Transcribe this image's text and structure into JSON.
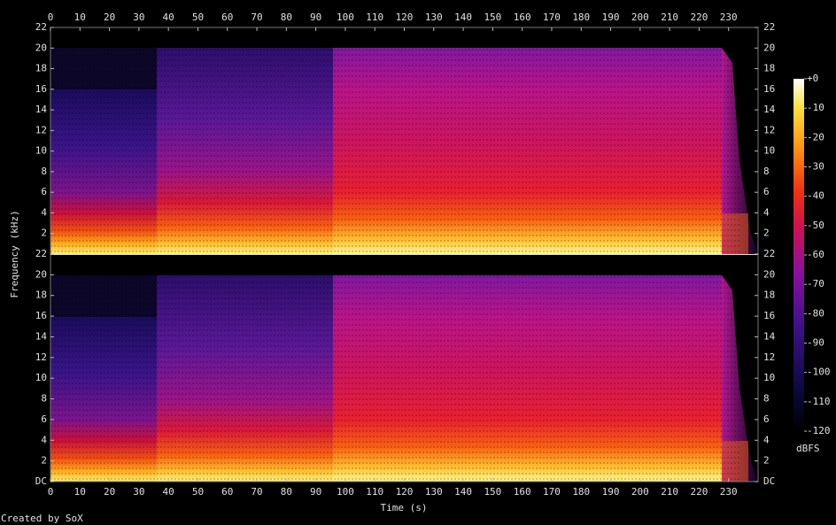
{
  "chart_data": {
    "type": "spectrogram",
    "xlabel": "Time (s)",
    "ylabel": "Frequency (kHz)",
    "xlim": [
      0,
      240
    ],
    "xticks": [
      0,
      10,
      20,
      30,
      40,
      50,
      60,
      70,
      80,
      90,
      100,
      110,
      120,
      130,
      140,
      150,
      160,
      170,
      180,
      190,
      200,
      210,
      220,
      230
    ],
    "panels": [
      {
        "ylim": [
          0,
          22
        ],
        "yticks": [
          2,
          4,
          6,
          8,
          10,
          12,
          14,
          16,
          18,
          20,
          22
        ]
      },
      {
        "ylim": [
          0,
          22
        ],
        "yticks": [
          {
            "value": 0,
            "label": "DC"
          },
          2,
          4,
          6,
          8,
          10,
          12,
          14,
          16,
          18,
          20,
          22
        ]
      }
    ],
    "colorbar": {
      "label": "dBFS",
      "lim": [
        -120,
        0
      ],
      "ticks": [
        {
          "value": 0,
          "label": "+0"
        },
        -10,
        -20,
        -30,
        -40,
        -50,
        -60,
        -70,
        -80,
        -90,
        -100,
        -110,
        -120
      ]
    },
    "footer": "Created by SoX"
  }
}
